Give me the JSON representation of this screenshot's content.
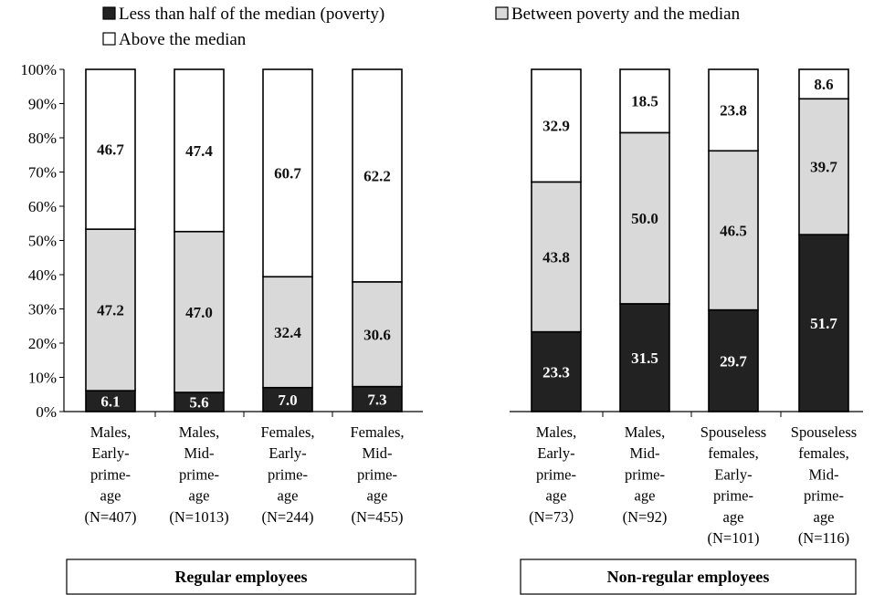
{
  "chart_data": {
    "type": "bar",
    "stacked": true,
    "ylim": [
      0,
      100
    ],
    "ytick_labels": [
      "0%",
      "10%",
      "20%",
      "30%",
      "40%",
      "50%",
      "60%",
      "70%",
      "80%",
      "90%",
      "100%"
    ],
    "legend": [
      {
        "label": "Less than half of the median (poverty)",
        "color": "#222222"
      },
      {
        "label": "Between poverty and the median",
        "color": "#d9d9d9"
      },
      {
        "label": "Above the median",
        "color": "#ffffff"
      }
    ],
    "categories": [
      [
        "Males,",
        "Early-",
        "prime-",
        "age",
        "(N=407)"
      ],
      [
        "Males,",
        "Mid-",
        "prime-",
        "age",
        "(N=1013)"
      ],
      [
        "Females,",
        "Early-",
        "prime-",
        "age",
        "(N=244)"
      ],
      [
        "Females,",
        "Mid-",
        "prime-",
        "age",
        "(N=455)"
      ],
      [
        "Males,",
        "Early-",
        "prime-",
        "age",
        "(N=73）"
      ],
      [
        "Males,",
        "Mid-",
        "prime-",
        "age",
        "(N=92)"
      ],
      [
        "Spouseless",
        "females,",
        "Early-",
        "prime-",
        "age",
        "(N=101)"
      ],
      [
        "Spouseless",
        "females,",
        "Mid-",
        "prime-",
        "age",
        "(N=116)"
      ]
    ],
    "series": [
      {
        "name": "Less than half of the median (poverty)",
        "values": [
          6.1,
          5.6,
          7.0,
          7.3,
          23.3,
          31.5,
          29.7,
          51.7
        ]
      },
      {
        "name": "Between poverty and the median",
        "values": [
          47.2,
          47.0,
          32.4,
          30.6,
          43.8,
          50.0,
          46.5,
          39.7
        ]
      },
      {
        "name": "Above the median",
        "values": [
          46.7,
          47.4,
          60.7,
          62.2,
          32.9,
          18.5,
          23.8,
          8.6
        ]
      }
    ],
    "value_labels": [
      [
        "6.1",
        "5.6",
        "7.0",
        "7.3",
        "23.3",
        "31.5",
        "29.7",
        "51.7"
      ],
      [
        "47.2",
        "47.0",
        "32.4",
        "30.6",
        "43.8",
        "50.0",
        "46.5",
        "39.7"
      ],
      [
        "46.7",
        "47.4",
        "60.7",
        "62.2",
        "32.9",
        "18.5",
        "23.8",
        "8.6"
      ]
    ],
    "groups": [
      {
        "label": "Regular employees",
        "categories": [
          0,
          1,
          2,
          3
        ]
      },
      {
        "label": "Non-regular employees",
        "categories": [
          4,
          5,
          6,
          7
        ]
      }
    ]
  }
}
